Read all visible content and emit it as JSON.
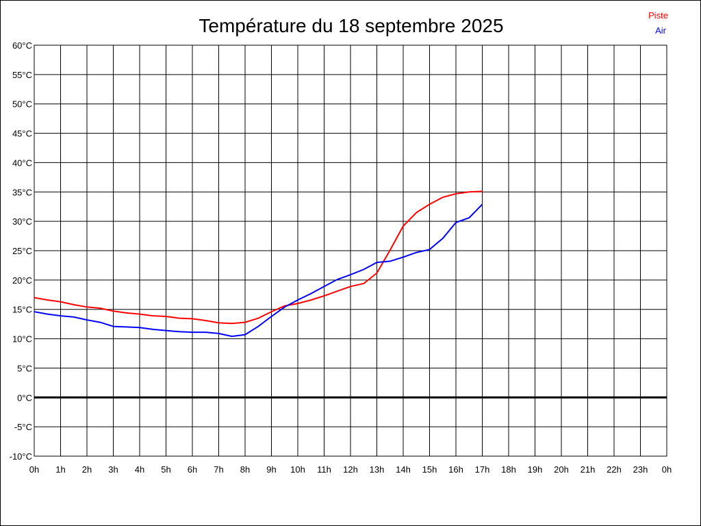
{
  "chart_data": {
    "type": "line",
    "title": "Température du 18 septembre 2025",
    "xlabel": "",
    "ylabel": "",
    "xlim": [
      0,
      24
    ],
    "ylim": [
      -10,
      60
    ],
    "grid": true,
    "legend_position": "top-right",
    "x_tick_labels": [
      "0h",
      "1h",
      "2h",
      "3h",
      "4h",
      "5h",
      "6h",
      "7h",
      "8h",
      "9h",
      "10h",
      "11h",
      "12h",
      "13h",
      "14h",
      "15h",
      "16h",
      "17h",
      "18h",
      "19h",
      "20h",
      "21h",
      "22h",
      "23h",
      "0h"
    ],
    "y_tick_labels": [
      "60°C",
      "55°C",
      "50°C",
      "45°C",
      "40°C",
      "35°C",
      "30°C",
      "25°C",
      "20°C",
      "15°C",
      "10°C",
      "5°C",
      "0°C",
      "-5°C",
      "-10°C"
    ],
    "y_ticks": [
      60,
      55,
      50,
      45,
      40,
      35,
      30,
      25,
      20,
      15,
      10,
      5,
      0,
      -5,
      -10
    ],
    "x": [
      0,
      0.5,
      1,
      1.5,
      2,
      2.5,
      3,
      3.5,
      4,
      4.5,
      5,
      5.5,
      6,
      6.5,
      7,
      7.5,
      8,
      8.5,
      9,
      9.5,
      10,
      10.5,
      11,
      11.5,
      12,
      12.5,
      13,
      13.5,
      14,
      14.5,
      15,
      15.5,
      16,
      16.5,
      17
    ],
    "series": [
      {
        "name": "Piste",
        "color": "#ff0000",
        "values": [
          17.0,
          16.6,
          16.3,
          15.8,
          15.4,
          15.2,
          14.7,
          14.4,
          14.2,
          13.9,
          13.8,
          13.5,
          13.4,
          13.1,
          12.7,
          12.6,
          12.8,
          13.5,
          14.6,
          15.6,
          16.0,
          16.6,
          17.3,
          18.1,
          18.9,
          19.4,
          21.2,
          25.1,
          29.2,
          31.5,
          32.9,
          34.1,
          34.7,
          35.0,
          35.1
        ]
      },
      {
        "name": "Air",
        "color": "#0000ff",
        "values": [
          14.6,
          14.2,
          13.9,
          13.7,
          13.2,
          12.8,
          12.1,
          12.0,
          11.9,
          11.6,
          11.4,
          11.2,
          11.1,
          11.1,
          10.9,
          10.4,
          10.7,
          12.1,
          13.8,
          15.4,
          16.6,
          17.7,
          18.9,
          20.1,
          20.9,
          21.8,
          23.0,
          23.2,
          23.9,
          24.7,
          25.2,
          27.1,
          29.8,
          30.6,
          32.9
        ]
      }
    ]
  }
}
